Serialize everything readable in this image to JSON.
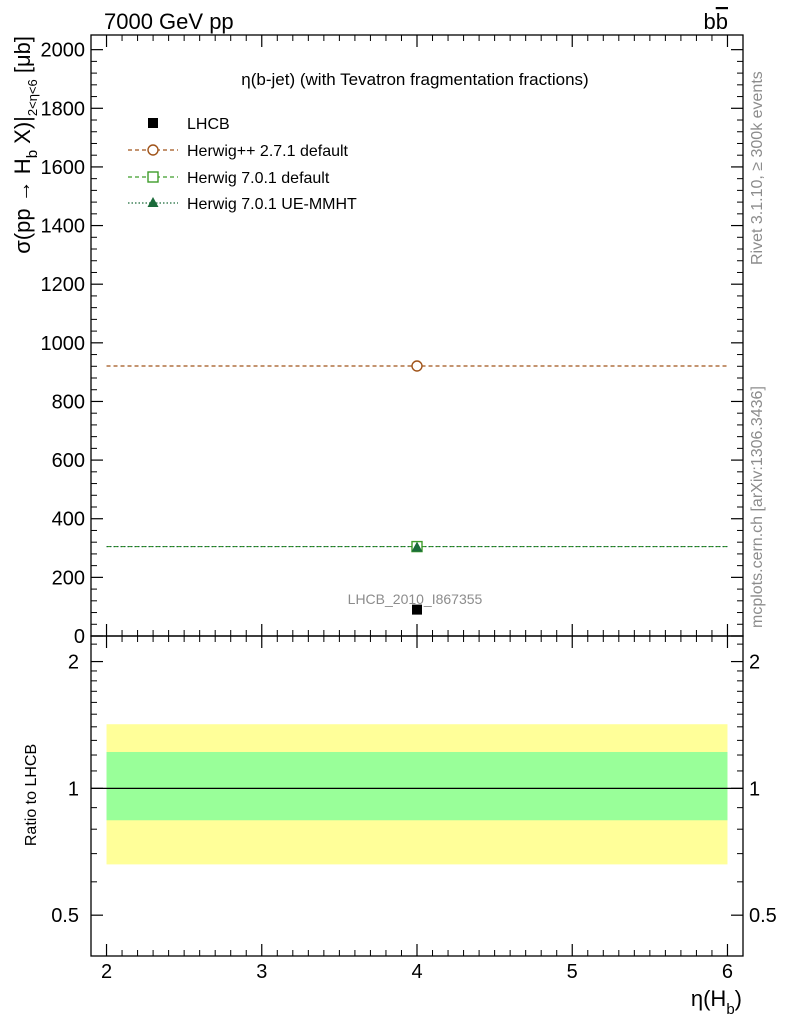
{
  "header": {
    "energy_label": "7000 GeV pp",
    "process_label": "bb̅"
  },
  "side_labels": {
    "rivet": "Rivet 3.1.10, ≥ 300k events",
    "mcplots": "mcplots.cern.ch [arXiv:1306.3436]"
  },
  "chart_data": [
    {
      "type": "scatter",
      "title": "η(b-jet) (with Tevatron fragmentation fractions)",
      "ylabel": "σ(pp → H_b X)|_{2<η<6} [μb]",
      "ylabel_parts": {
        "main": "σ(pp → H",
        "sub1": "b",
        "mid": " X)|",
        "sub2": "2<η<6",
        "unit": " [μb]"
      },
      "xlim": [
        1.9,
        6.1
      ],
      "ylim": [
        0,
        2050
      ],
      "yticks": [
        0,
        200,
        400,
        600,
        800,
        1000,
        1200,
        1400,
        1600,
        1800,
        2000
      ],
      "yticklabels": [
        "0",
        "200",
        "400",
        "600",
        "800",
        "1000",
        "1200",
        "1400",
        "1600",
        "1800",
        "2000"
      ],
      "bin": [
        2,
        6
      ],
      "watermark": "LHCB_2010_I867355",
      "legend_position": "top-left",
      "series": [
        {
          "name": "LHCB",
          "marker": "filled-square",
          "color": "#000000",
          "x": [
            4
          ],
          "y": [
            90
          ]
        },
        {
          "name": "Herwig++ 2.7.1 default",
          "marker": "open-circle",
          "line": "dashed",
          "color": "#a0541a",
          "x": [
            4
          ],
          "y": [
            921
          ]
        },
        {
          "name": "Herwig 7.0.1 default",
          "marker": "open-square",
          "line": "dashed",
          "color": "#3f9d2a",
          "x": [
            4
          ],
          "y": [
            305
          ]
        },
        {
          "name": "Herwig 7.0.1 UE-MMHT",
          "marker": "filled-triangle",
          "line": "dotted",
          "color": "#1b6b3a",
          "x": [
            4
          ],
          "y": [
            305
          ]
        }
      ]
    },
    {
      "type": "area",
      "ylabel": "Ratio to LHCB",
      "xlabel": "η(H_b)",
      "xlabel_parts": {
        "main": "η(H",
        "sub": "b",
        "end": ")"
      },
      "xlim": [
        1.9,
        6.1
      ],
      "ylim": [
        0.4,
        2.3
      ],
      "log_scale_y": true,
      "yticks": [
        0.5,
        1,
        2
      ],
      "yticklabels": [
        "0.5",
        "1",
        "2"
      ],
      "xticks": [
        2,
        3,
        4,
        5,
        6
      ],
      "xticklabels": [
        "2",
        "3",
        "4",
        "5",
        "6"
      ],
      "reference_line": 1,
      "bands": [
        {
          "kind": "outer",
          "color": "#ffff99",
          "low": 0.66,
          "high": 1.42
        },
        {
          "kind": "inner",
          "color": "#99ff99",
          "low": 0.84,
          "high": 1.22
        }
      ]
    }
  ]
}
